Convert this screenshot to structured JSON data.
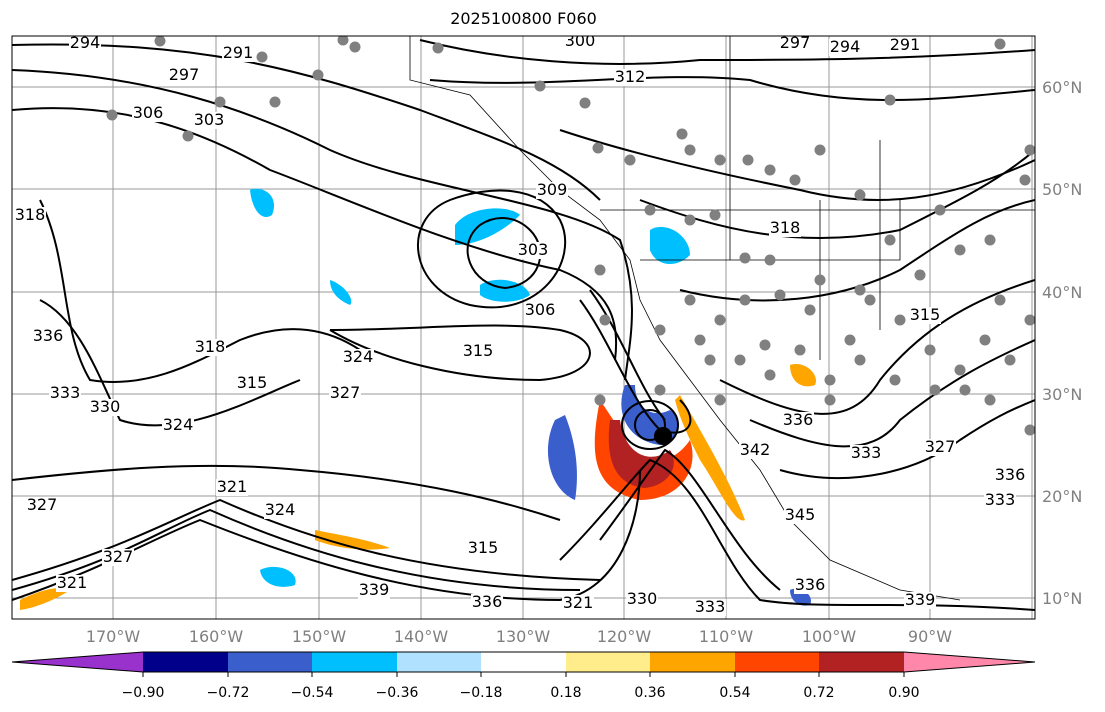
{
  "title": "2025100800 F060",
  "lon_labels": [
    "170°W",
    "160°W",
    "150°W",
    "140°W",
    "130°W",
    "120°W",
    "110°W",
    "100°W",
    "90°W"
  ],
  "lat_labels": [
    "60°N",
    "50°N",
    "40°N",
    "30°N",
    "20°N",
    "10°N"
  ],
  "contour_labels": [
    "294",
    "291",
    "297",
    "306",
    "303",
    "300",
    "312",
    "297",
    "294",
    "291",
    "309",
    "303",
    "306",
    "315",
    "318",
    "324",
    "327",
    "330",
    "333",
    "336",
    "318",
    "315",
    "324",
    "327",
    "321",
    "324",
    "321",
    "327",
    "321",
    "339",
    "336",
    "330",
    "333",
    "339",
    "315",
    "342",
    "336",
    "333",
    "345",
    "336",
    "327",
    "336",
    "333",
    "318",
    "315"
  ],
  "colorbar": {
    "ticks": [
      "−0.90",
      "−0.72",
      "−0.54",
      "−0.36",
      "−0.18",
      "0.18",
      "0.36",
      "0.54",
      "0.72",
      "0.90"
    ],
    "colors": [
      "#9932cc",
      "#00008b",
      "#3a5fcd",
      "#00bfff",
      "#b0e2ff",
      "#ffffff",
      "#ffec8b",
      "#ffa500",
      "#ff4500",
      "#b22222",
      "#ff88aa"
    ]
  }
}
